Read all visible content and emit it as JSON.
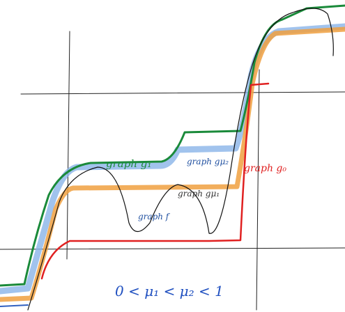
{
  "labels": {
    "g1": "graph g₁",
    "g_mu2": "graph gμ₂",
    "g0": "graph g₀",
    "g_mu1": "graph gμ₁",
    "f": "graph f"
  },
  "caption": "0 < μ₁ < μ₂ < 1"
}
